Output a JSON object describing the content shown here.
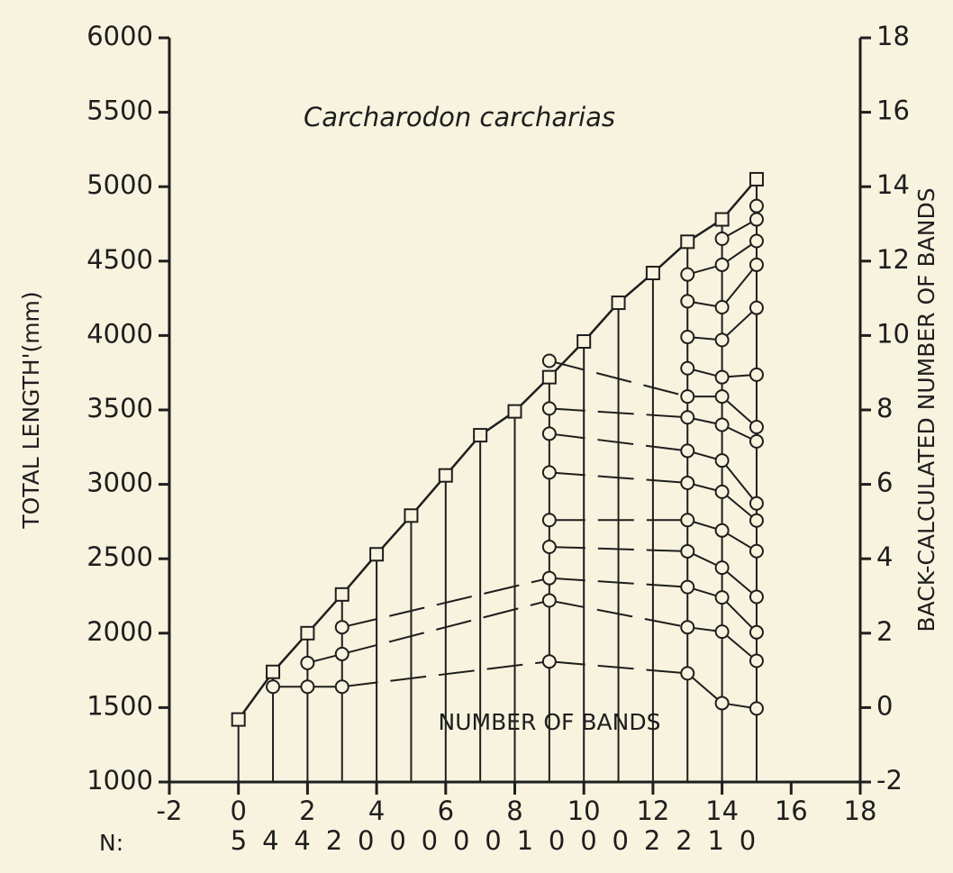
{
  "chart_data": {
    "type": "growth",
    "title": "Carcharodon carcharias",
    "x_label": "NUMBER OF BANDS",
    "y_label": "TOTAL LENGTH'(mm)",
    "y2_label": "BACK-CALCULATED NUMBER OF BANDS",
    "xlim": [
      -2,
      18
    ],
    "xticks": [
      -2,
      0,
      2,
      4,
      6,
      8,
      10,
      12,
      14,
      16,
      18
    ],
    "ylim": [
      1000,
      6000
    ],
    "yticks": [
      1000,
      1500,
      2000,
      2500,
      3000,
      3500,
      4000,
      4500,
      5000,
      5500,
      6000
    ],
    "y2lim": [
      -2,
      18
    ],
    "y2ticks": [
      -2,
      0,
      2,
      4,
      6,
      8,
      10,
      12,
      14,
      16,
      18
    ],
    "observed": {
      "x": [
        0,
        1,
        2,
        3,
        4,
        5,
        6,
        7,
        8,
        9,
        10,
        11,
        12,
        13,
        14,
        15
      ],
      "values": [
        1420,
        1740,
        2000,
        2260,
        2530,
        2790,
        3060,
        3330,
        3490,
        3720,
        3960,
        4220,
        4420,
        4630,
        4780,
        5050
      ]
    },
    "back_calculated": [
      {
        "x": 1,
        "values": [
          1640
        ]
      },
      {
        "x": 2,
        "values": [
          1640,
          1800
        ]
      },
      {
        "x": 3,
        "values": [
          1640,
          1860,
          2040
        ]
      },
      {
        "x": 9,
        "values": [
          1810,
          2220,
          2370,
          2580,
          2760,
          3080,
          3340,
          3510,
          3830
        ]
      },
      {
        "x": 13,
        "values": [
          1730,
          2040,
          2310,
          2550,
          2760,
          3010,
          3225,
          3450,
          3590,
          3780,
          3990,
          4230,
          4410
        ]
      },
      {
        "x": 14,
        "values": [
          1530,
          2010,
          2240,
          2440,
          2690,
          2950,
          3160,
          3400,
          3590,
          3720,
          3970,
          4190,
          4475,
          4650
        ]
      },
      {
        "x": 15,
        "values": [
          1494,
          1814,
          2006,
          2244,
          2551,
          2757,
          2872,
          3289,
          3385,
          3737,
          4186,
          4475,
          4635,
          4780,
          4870
        ]
      }
    ],
    "n_label": "N:",
    "n_values": [
      5,
      4,
      4,
      2,
      0,
      0,
      0,
      0,
      0,
      1,
      0,
      0,
      0,
      2,
      2,
      1,
      0
    ]
  }
}
